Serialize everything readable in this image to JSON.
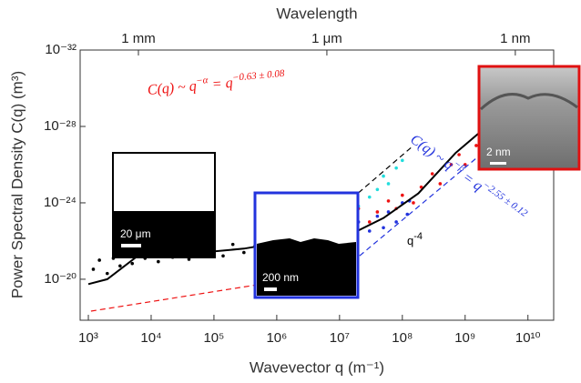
{
  "chart_data": {
    "type": "scatter",
    "x_label": "Wavevector q (m⁻¹)",
    "y_label": "Power Spectral Density C(q) (m³)",
    "x2_label": "Wavelength",
    "log_x": true,
    "log_y": true,
    "xlim": [
      740,
      25700000000.0
    ],
    "xticks": [
      {
        "value": 1000,
        "label": "10³"
      },
      {
        "value": 10000,
        "label": "10⁴"
      },
      {
        "value": 100000,
        "label": "10⁵"
      },
      {
        "value": 1000000,
        "label": "10⁶"
      },
      {
        "value": 10000000,
        "label": "10⁷"
      },
      {
        "value": 100000000,
        "label": "10⁸"
      },
      {
        "value": 1000000000,
        "label": "10⁹"
      },
      {
        "value": 10000000000,
        "label": "10¹⁰"
      }
    ],
    "ylim": [
      1.4e-18,
      1e-32
    ],
    "yticks": [
      {
        "value": 1e-20,
        "label": "10⁻²⁰"
      },
      {
        "value": 1e-24,
        "label": "10⁻²⁴"
      },
      {
        "value": 1e-28,
        "label": "10⁻²⁸"
      },
      {
        "value": 1e-32,
        "label": "10⁻³²"
      }
    ],
    "x2lim": [
      0.00847,
      2.45e-10
    ],
    "x2ticks": [
      {
        "value": 0.001,
        "label": "1 mm"
      },
      {
        "value": 1e-06,
        "label": "1 μm"
      },
      {
        "value": 1e-09,
        "label": "1 nm"
      }
    ],
    "series": [
      {
        "color": "#000000",
        "mode": "markers",
        "x": [
          1200,
          1500,
          2000,
          2500,
          3200,
          4000,
          5000,
          6000,
          8000,
          10000,
          13000,
          17000,
          22000,
          30000,
          40000,
          55000,
          70000,
          100000,
          140000,
          200000,
          300000,
          450000,
          600000,
          800000,
          1000000,
          1300000,
          1700000
        ],
        "values": [
          3e-21,
          1e-21,
          5e-21,
          8e-22,
          2e-21,
          3e-22,
          1.5e-21,
          2e-22,
          8e-22,
          4e-22,
          1.2e-21,
          2.5e-22,
          7e-22,
          3e-22,
          9e-22,
          2e-22,
          5e-22,
          3e-22,
          6e-22,
          1.5e-22,
          4e-22,
          1.8e-22,
          3e-22,
          1e-22,
          2.5e-22,
          8e-23,
          1.8e-22
        ]
      },
      {
        "color": "#ee1111",
        "mode": "markers",
        "x": [
          7000000.0,
          10000000.0,
          15000000.0,
          20000000.0,
          30000000.0,
          40000000.0,
          60000000.0,
          80000000.0,
          100000000.0,
          150000000.0,
          200000000.0,
          300000000.0,
          400000000.0,
          600000000.0,
          800000000.0,
          1000000000.0,
          1500000000.0,
          2000000000.0,
          3000000000.0,
          4000000000.0,
          6000000000.0,
          8000000000.0,
          10000000000.0,
          15000000000.0,
          20000000000.0
        ],
        "values": [
          2e-23,
          6e-24,
          3e-23,
          2e-24,
          1e-23,
          3e-24,
          8e-25,
          2e-24,
          4e-25,
          1e-24,
          1.5e-25,
          3e-26,
          1e-25,
          1e-26,
          3e-27,
          1e-26,
          1e-27,
          2e-28,
          6e-28,
          8e-29,
          2e-29,
          5e-30,
          1.5e-30,
          3e-31,
          8e-32
        ]
      },
      {
        "color": "#2233dd",
        "mode": "markers",
        "x": [
          15000000.0,
          20000000.0,
          30000000.0,
          40000000.0,
          50000000.0,
          60000000.0,
          80000000.0,
          100000000.0,
          120000000.0,
          130000000.0
        ],
        "values": [
          5e-23,
          1e-23,
          3e-23,
          5e-24,
          2e-23,
          3e-24,
          1e-23,
          1e-24,
          4e-24,
          8e-25
        ]
      },
      {
        "color": "#22dddd",
        "mode": "markers",
        "x": [
          7000000.0,
          10000000.0,
          15000000.0,
          20000000.0,
          30000000.0,
          40000000.0,
          50000000.0,
          60000000.0,
          80000000.0,
          100000000.0
        ],
        "values": [
          2e-23,
          8e-24,
          3e-24,
          1.5e-24,
          5e-25,
          2e-25,
          4e-26,
          1e-25,
          1.5e-26,
          6e-27
        ]
      },
      {
        "color": "#000000",
        "mode": "line",
        "x": [
          1000,
          2000,
          6000,
          30000,
          300000,
          1000000,
          3000000,
          14000000,
          50000000,
          180000000,
          700000000,
          2600000000,
          7000000000,
          17000000000
        ],
        "values": [
          1.8e-20,
          1e-20,
          6.3e-22,
          5e-22,
          2.5e-22,
          1.3e-22,
          1e-22,
          5e-23,
          6.3e-24,
          3.2e-25,
          2.5e-27,
          6.3e-29,
          2e-30,
          1.3e-31
        ]
      },
      {
        "color": "#ee1111",
        "mode": "dashed",
        "x": [
          1100,
          7500000
        ],
        "values": [
          4.7e-19,
          4.7e-21
        ]
      },
      {
        "color": "#2233dd",
        "mode": "dashed",
        "x": [
          7500000,
          18000000000
        ],
        "values": [
          1e-20,
          5e-30
        ]
      },
      {
        "color": "#000000",
        "mode": "dashed",
        "x": [
          20000000,
          150000000
        ],
        "values": [
          3e-25,
          1e-27
        ]
      }
    ],
    "annotations": [
      {
        "parts": [
          "C(q) ~ q",
          "−α",
          " = q",
          "−0.63 ± 0.08"
        ],
        "color": "#ee1111"
      },
      {
        "parts": [
          "C(q) ~ q",
          "−β",
          " = q",
          "−2.55 ± 0.12"
        ],
        "color": "#2233dd"
      },
      {
        "parts": [
          "q",
          "-4"
        ],
        "color": "#000000"
      }
    ],
    "inset_labels": [
      "20 μm",
      "200 nm",
      "2 nm"
    ]
  }
}
